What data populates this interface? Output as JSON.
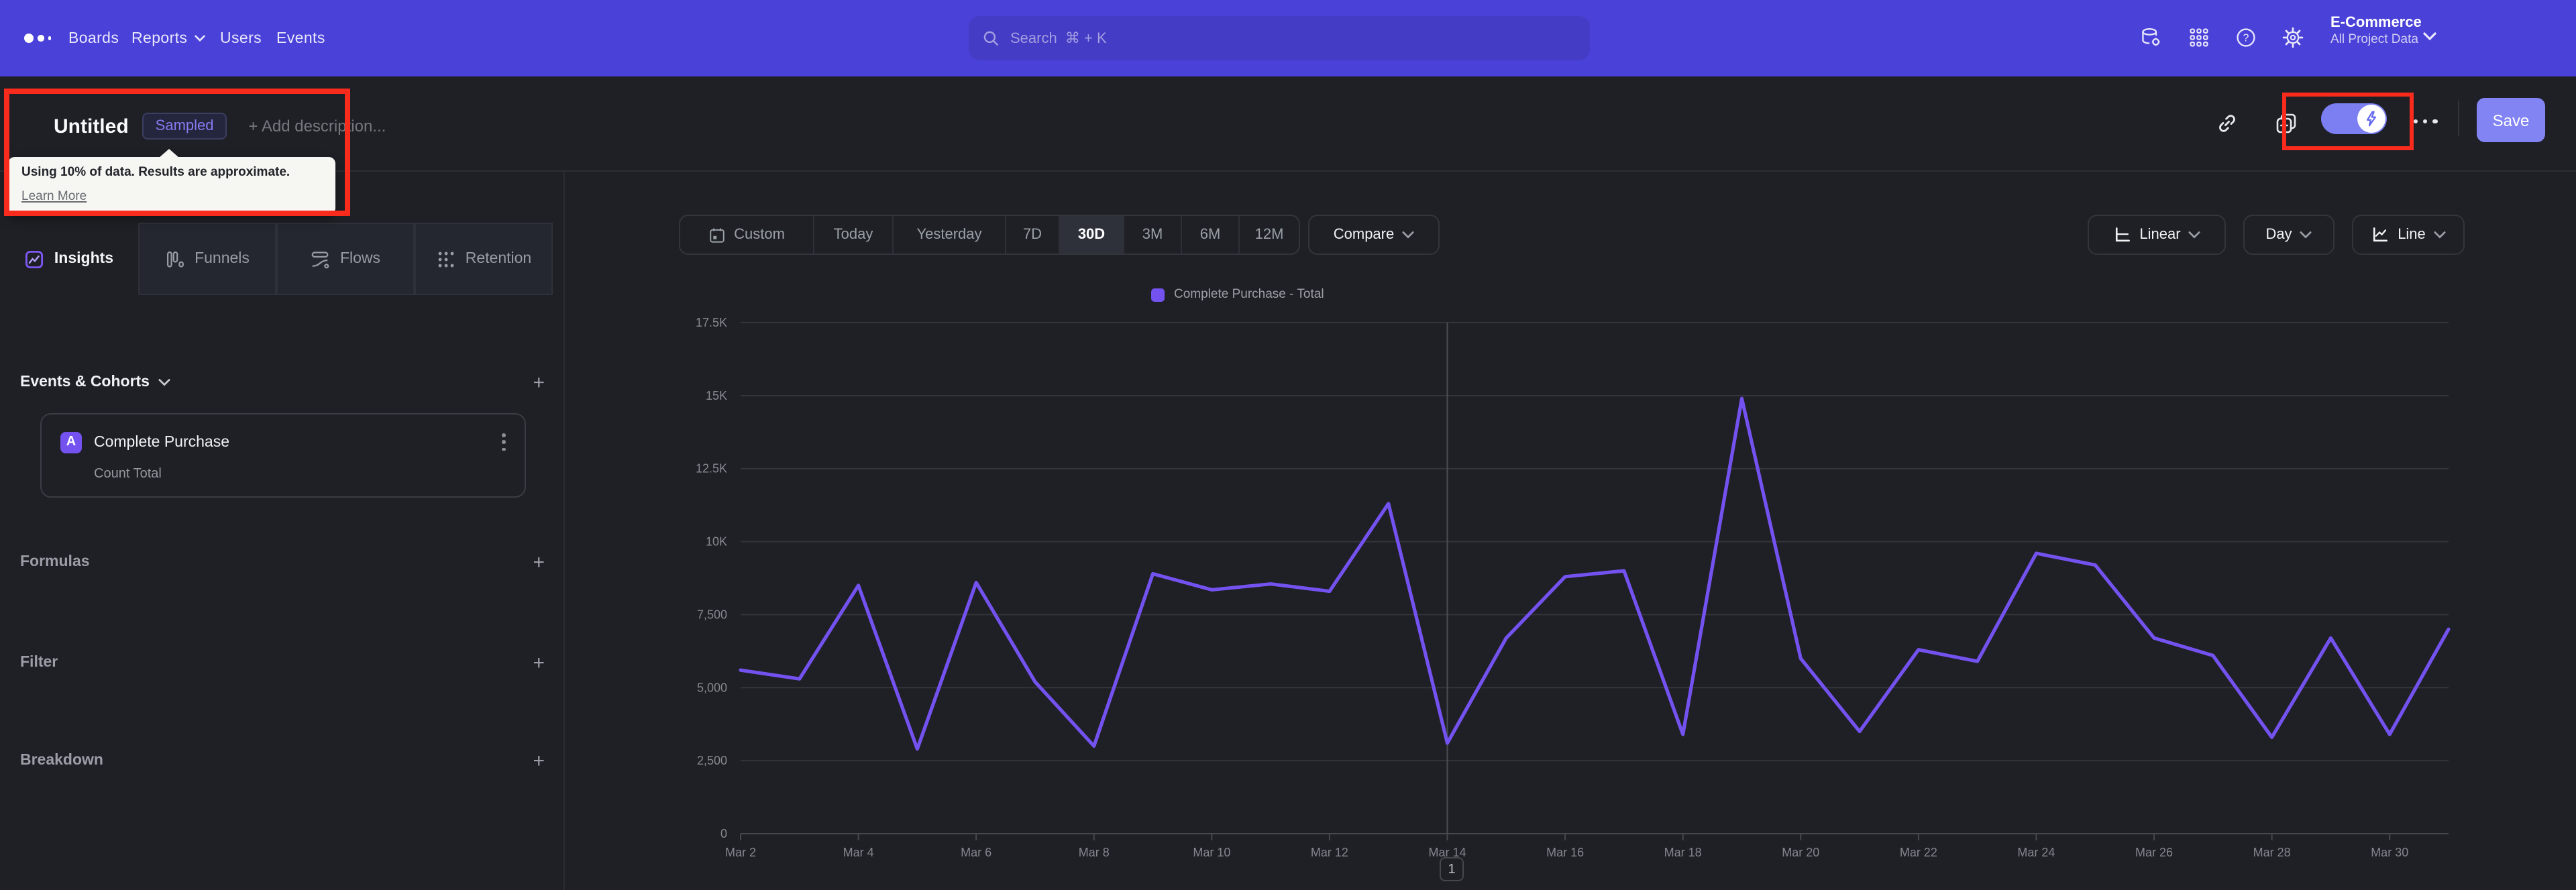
{
  "nav": {
    "items": [
      "Boards",
      "Reports",
      "Users",
      "Events"
    ],
    "search": {
      "placeholder": "Search  ⌘ + K"
    },
    "project": {
      "name": "E-Commerce",
      "scope": "All Project Data"
    }
  },
  "titlebar": {
    "title": "Untitled",
    "badge": "Sampled",
    "description_placeholder": "+ Add description...",
    "save_label": "Save"
  },
  "tooltip": {
    "text": "Using 10% of data. Results are approximate.",
    "link": "Learn More"
  },
  "sidebar": {
    "tabs": [
      {
        "label": "Insights",
        "active": true
      },
      {
        "label": "Funnels",
        "active": false
      },
      {
        "label": "Flows",
        "active": false
      },
      {
        "label": "Retention",
        "active": false
      }
    ],
    "events_header": "Events & Cohorts",
    "event_card": {
      "letter": "A",
      "title": "Complete Purchase",
      "metric": "Count Total"
    },
    "sections": [
      "Formulas",
      "Filter",
      "Breakdown"
    ]
  },
  "toolbar": {
    "ranges": [
      "Custom",
      "Today",
      "Yesterday",
      "7D",
      "30D",
      "3M",
      "6M",
      "12M"
    ],
    "active_range": "30D",
    "compare_label": "Compare",
    "scale_label": "Linear",
    "interval_label": "Day",
    "chart_type_label": "Line"
  },
  "chart_data": {
    "type": "line",
    "series": [
      {
        "name": "Complete Purchase - Total",
        "values": [
          5600,
          5300,
          8500,
          2900,
          8600,
          5200,
          3000,
          8900,
          8350,
          8550,
          8300,
          11300,
          3100,
          6700,
          8800,
          9000,
          3400,
          14900,
          6000,
          3500,
          6300,
          5900,
          9600,
          9200,
          6700,
          6100,
          3300,
          6700,
          3400,
          7000
        ]
      }
    ],
    "x": [
      "Mar 2",
      "Mar 3",
      "Mar 4",
      "Mar 5",
      "Mar 6",
      "Mar 7",
      "Mar 8",
      "Mar 9",
      "Mar 10",
      "Mar 11",
      "Mar 12",
      "Mar 13",
      "Mar 14",
      "Mar 15",
      "Mar 16",
      "Mar 17",
      "Mar 18",
      "Mar 19",
      "Mar 20",
      "Mar 21",
      "Mar 22",
      "Mar 23",
      "Mar 24",
      "Mar 25",
      "Mar 26",
      "Mar 27",
      "Mar 28",
      "Mar 29",
      "Mar 30",
      "Mar 31"
    ],
    "x_tick_labels": [
      "Mar 2",
      "Mar 4",
      "Mar 6",
      "Mar 8",
      "Mar 10",
      "Mar 12",
      "Mar 14",
      "Mar 16",
      "Mar 18",
      "Mar 20",
      "Mar 22",
      "Mar 24",
      "Mar 26",
      "Mar 28",
      "Mar 30"
    ],
    "ylim": [
      0,
      17500
    ],
    "y_ticks": [
      "0",
      "2,500",
      "5,000",
      "7,500",
      "10K",
      "12.5K",
      "15K",
      "17.5K"
    ],
    "grid": true,
    "legend_position": "top",
    "line_color": "#7452f0",
    "vertical_marker_x": "Mar 14"
  },
  "pagination": {
    "page": "1"
  },
  "colors": {
    "accent": "#7452f0",
    "nav_bg": "#4a41d8",
    "save_bg": "#8184f2",
    "annotation_red": "#f92b1d",
    "badge_text": "#877af0"
  }
}
